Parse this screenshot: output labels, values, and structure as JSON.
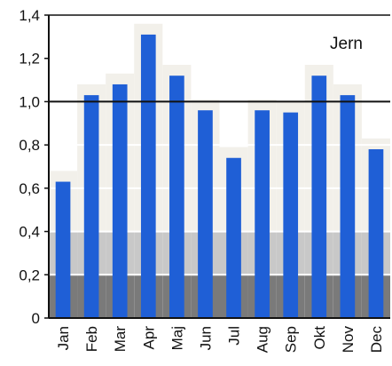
{
  "chart_data": {
    "type": "bar",
    "title": "",
    "xlabel": "",
    "ylabel": "",
    "annotation": "Jern",
    "categories": [
      "Jan",
      "Feb",
      "Mar",
      "Apr",
      "Maj",
      "Jun",
      "Jul",
      "Aug",
      "Sep",
      "Okt",
      "Nov",
      "Dec"
    ],
    "values": [
      0.63,
      1.03,
      1.08,
      1.31,
      1.12,
      0.96,
      0.74,
      0.96,
      0.95,
      1.12,
      1.03,
      0.78
    ],
    "reference_line": 1.0,
    "ylim": [
      0,
      1.4
    ],
    "yticks": [
      "0",
      "0,2",
      "0,4",
      "0,6",
      "0,8",
      "1,0",
      "1,2",
      "1,4"
    ],
    "bar_color": "#1f5fd6",
    "grid": false,
    "legend": "none"
  }
}
